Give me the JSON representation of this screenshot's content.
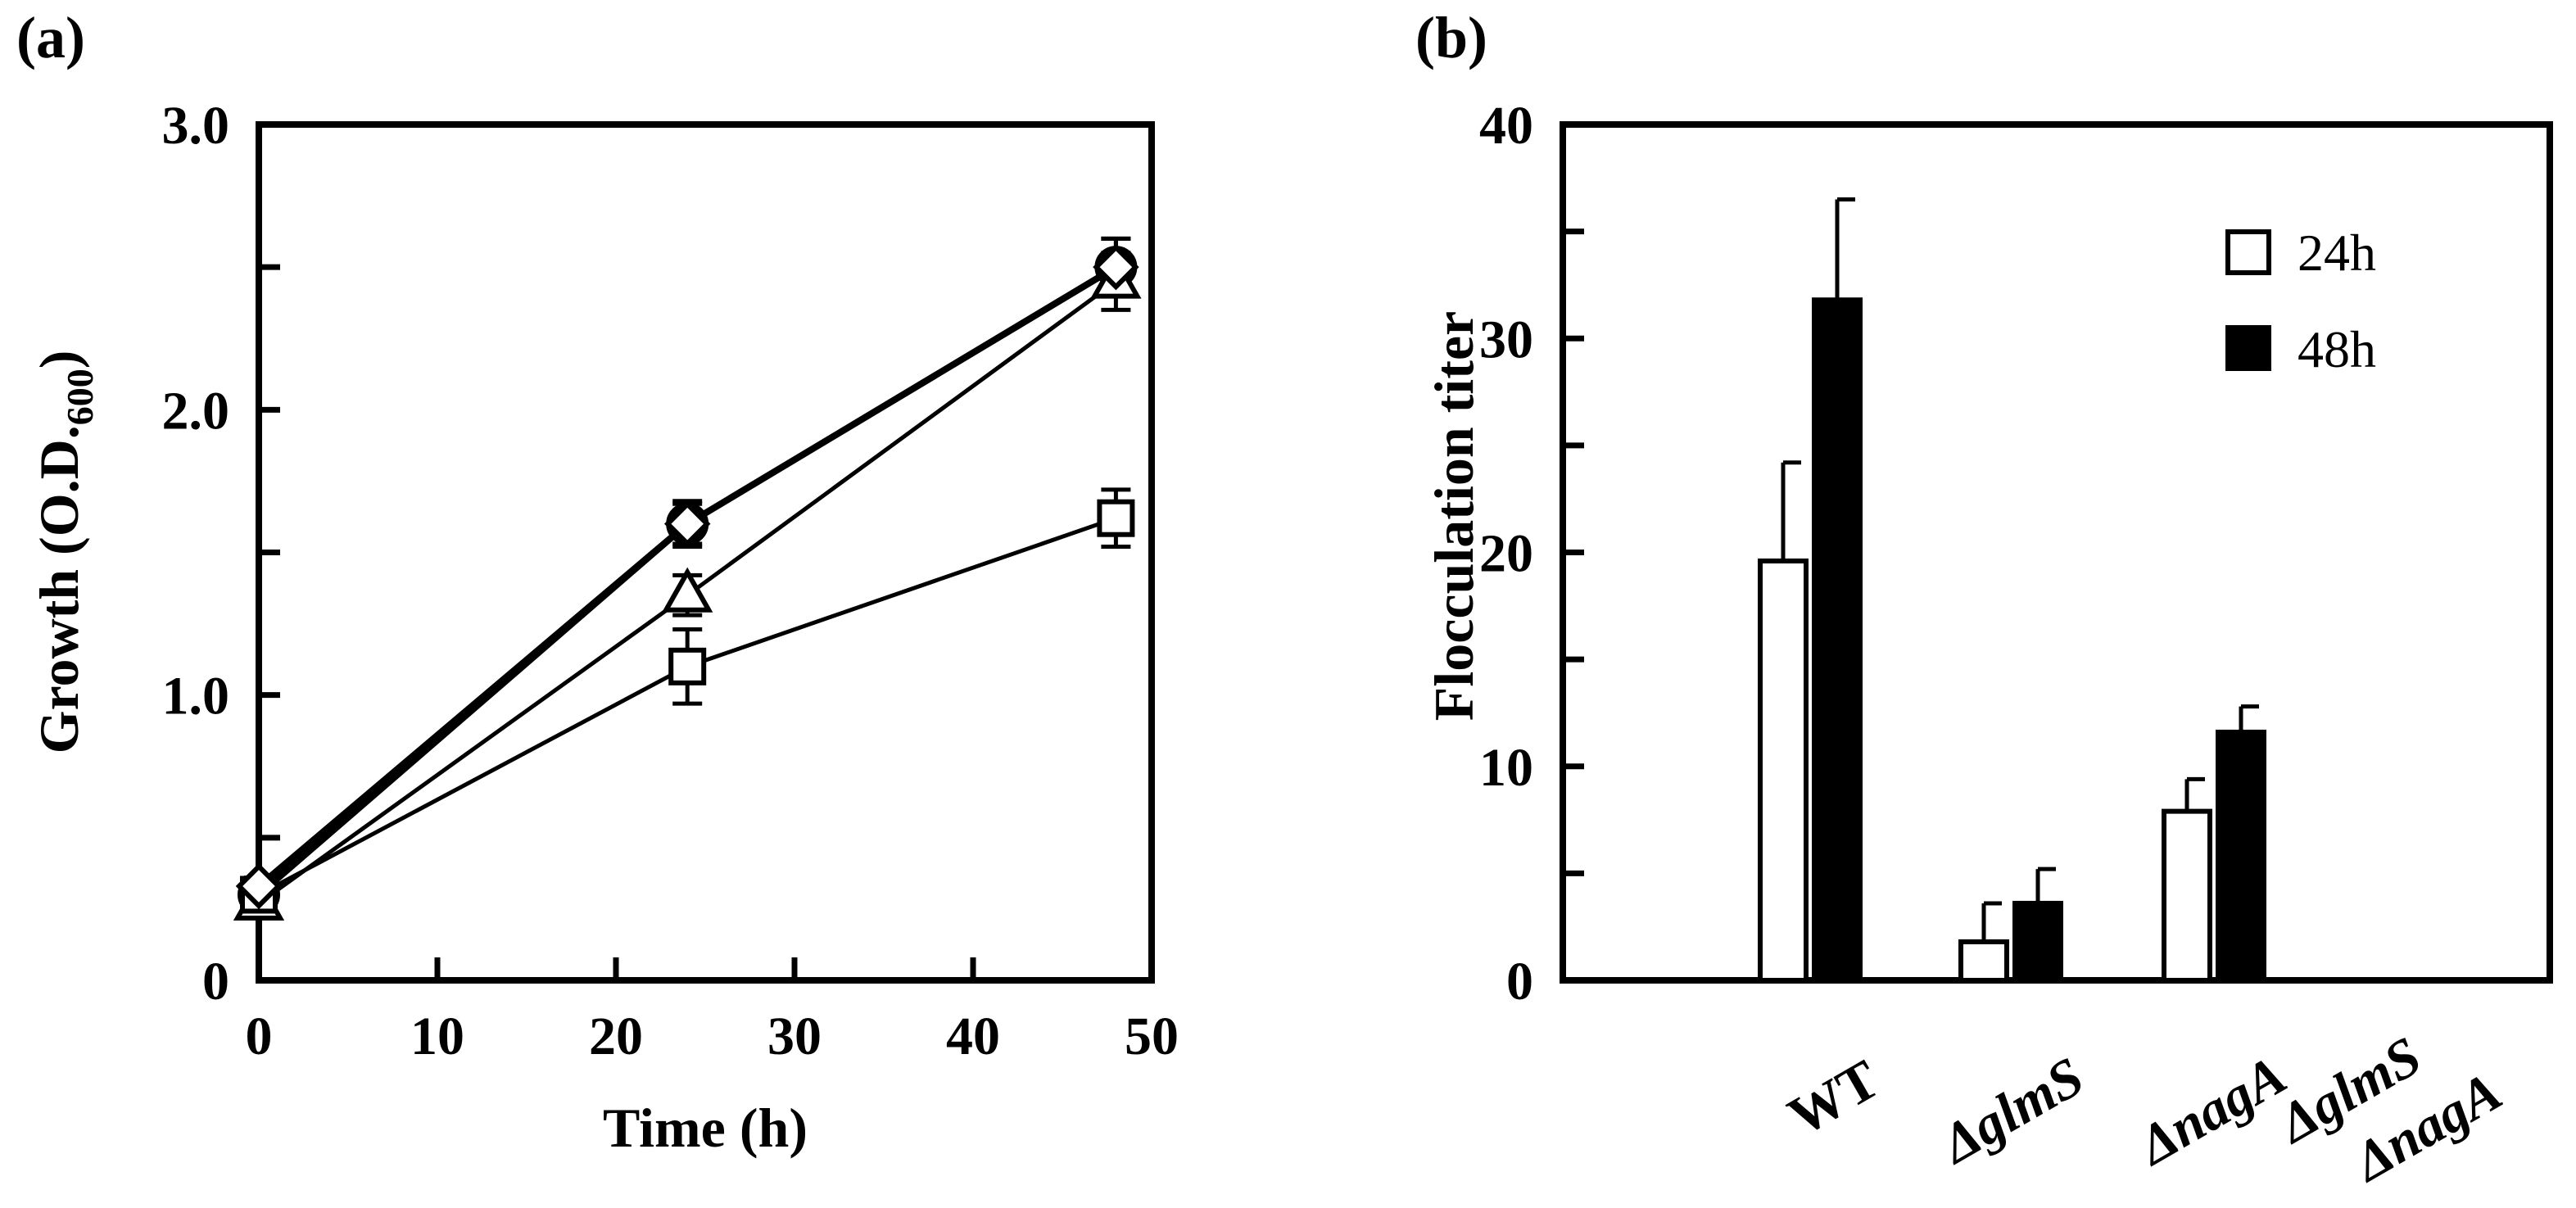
{
  "colors": {
    "ink": "#000000",
    "paper": "#ffffff"
  },
  "chart_data": [
    {
      "panel": "(a)",
      "type": "line",
      "xlabel": "Time (h)",
      "ylabel": "Growth (O.D.",
      "ylabel_subscript": "600",
      "ylabel_close": ")",
      "xlim": [
        0,
        50
      ],
      "ylim": [
        0,
        3.0
      ],
      "x_ticks": [
        0,
        10,
        20,
        30,
        40,
        50
      ],
      "x_tick_labels": [
        "0",
        "10",
        "20",
        "30",
        "40",
        "50"
      ],
      "y_ticks": [
        0,
        0.5,
        1.0,
        1.5,
        2.0,
        2.5,
        3.0
      ],
      "y_tick_labels": [
        "0",
        "",
        "1.0",
        "",
        "2.0",
        "",
        "3.0"
      ],
      "series": [
        {
          "name": "circle",
          "marker": "circle",
          "x": [
            0,
            24,
            48
          ],
          "y": [
            0.3,
            1.6,
            2.5
          ],
          "err": [
            0.03,
            0.08,
            0.1
          ],
          "line_weight": "thick"
        },
        {
          "name": "diamond",
          "marker": "diamond",
          "x": [
            0,
            24,
            48
          ],
          "y": [
            0.33,
            1.6,
            2.5
          ],
          "err": [
            0.03,
            0.07,
            0.1
          ],
          "line_weight": "thick"
        },
        {
          "name": "triangle",
          "marker": "triangle",
          "x": [
            0,
            24,
            48
          ],
          "y": [
            0.27,
            1.35,
            2.45
          ],
          "err": [
            0.03,
            0.07,
            0.1
          ],
          "line_weight": "thin"
        },
        {
          "name": "square",
          "marker": "square",
          "x": [
            0,
            24,
            48
          ],
          "y": [
            0.3,
            1.1,
            1.62
          ],
          "err": [
            0.03,
            0.13,
            0.1
          ],
          "line_weight": "thin"
        }
      ]
    },
    {
      "panel": "(b)",
      "type": "bar",
      "ylabel": "Flocculation titer",
      "ylim": [
        0,
        40
      ],
      "y_ticks": [
        0,
        5,
        10,
        15,
        20,
        25,
        30,
        35,
        40
      ],
      "y_tick_labels": [
        "0",
        "",
        "10",
        "",
        "20",
        "",
        "30",
        "",
        "40"
      ],
      "categories": [
        {
          "label": "WT",
          "prefix": "",
          "italic": "",
          "prefix2": "",
          "italic2": ""
        },
        {
          "label": "",
          "prefix": "Δ",
          "italic": "glmS",
          "prefix2": "",
          "italic2": ""
        },
        {
          "label": "",
          "prefix": "Δ",
          "italic": "nagA",
          "prefix2": "",
          "italic2": ""
        },
        {
          "label": "",
          "prefix": "Δ",
          "italic": "glmS",
          "prefix2": "Δ",
          "italic2": "nagA"
        }
      ],
      "series": [
        {
          "name": "24h",
          "fill": "white",
          "values": [
            19.6,
            1.8,
            7.9,
            0
          ],
          "err": [
            4.6,
            1.8,
            1.5,
            0
          ]
        },
        {
          "name": "48h",
          "fill": "black",
          "values": [
            31.8,
            3.6,
            11.6,
            0
          ],
          "err": [
            4.7,
            1.6,
            1.2,
            0
          ]
        }
      ],
      "legend": {
        "position": "top-right"
      }
    }
  ]
}
